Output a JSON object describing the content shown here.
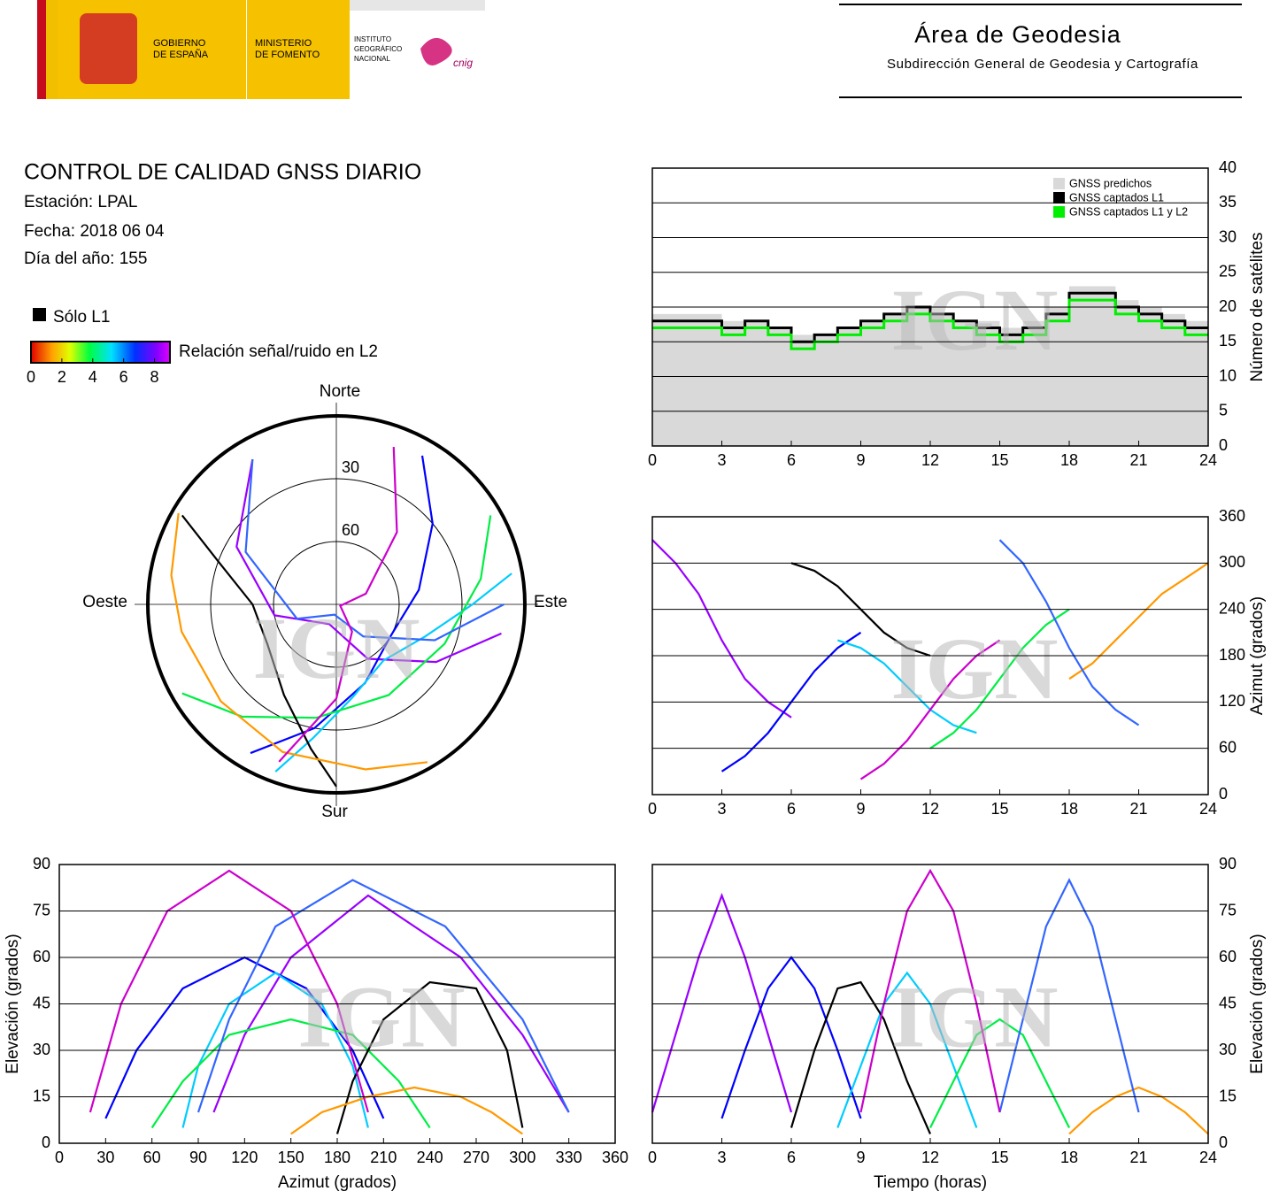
{
  "header": {
    "gobierno": [
      "GOBIERNO",
      "DE ESPAÑA"
    ],
    "ministerio": [
      "MINISTERIO",
      "DE FOMENTO"
    ],
    "instituto": [
      "INSTITUTO",
      "GEOGRÁFICO",
      "NACIONAL"
    ],
    "cnig": "cnig",
    "area": "Área de Geodesia",
    "subdireccion": "Subdirección General de Geodesia y Cartografía"
  },
  "report": {
    "title": "CONTROL DE CALIDAD GNSS DIARIO",
    "estacion": "Estación: LPAL",
    "fecha": "Fecha: 2018 06 04",
    "dia": "Día del año: 155"
  },
  "legend": {
    "solo_l1": "Sólo L1",
    "solo_l1_color": "#000000",
    "snr_label": "Relación señal/ruido en L2",
    "snr_lim": [
      0,
      9
    ],
    "snr_ticks": [
      0,
      2,
      4,
      6,
      8
    ]
  },
  "watermark": "IGN",
  "chart_data": [
    {
      "type": "step",
      "y_label": "Número de satélites",
      "yaxis": "right",
      "grid": true,
      "legend": "upper right",
      "xlim": [
        0,
        24
      ],
      "xticks": [
        0,
        3,
        6,
        9,
        12,
        15,
        18,
        21,
        24
      ],
      "ylim": [
        0,
        40
      ],
      "yticks": [
        0,
        5,
        10,
        15,
        20,
        25,
        30,
        35,
        40
      ],
      "x": [
        0,
        1,
        2,
        3,
        4,
        5,
        6,
        7,
        8,
        9,
        10,
        11,
        12,
        13,
        14,
        15,
        16,
        17,
        18,
        19,
        20,
        21,
        22,
        23,
        24
      ],
      "series": [
        {
          "name": "GNSS predichos",
          "color": "#d9d9d9",
          "kind": "area",
          "values": [
            19,
            19,
            19,
            18,
            18,
            17,
            16,
            16,
            17,
            18,
            19,
            20,
            19,
            18,
            18,
            17,
            18,
            20,
            23,
            23,
            21,
            20,
            19,
            18,
            18
          ]
        },
        {
          "name": "GNSS captados L1",
          "color": "#000000",
          "kind": "step",
          "values": [
            18,
            18,
            18,
            17,
            18,
            17,
            15,
            16,
            17,
            18,
            19,
            20,
            19,
            18,
            17,
            16,
            17,
            19,
            22,
            22,
            20,
            19,
            18,
            17,
            17
          ]
        },
        {
          "name": "GNSS captados L1 y L2",
          "color": "#00ee00",
          "kind": "step",
          "values": [
            17,
            17,
            17,
            16,
            17,
            16,
            14,
            15,
            16,
            17,
            18,
            19,
            18,
            17,
            16,
            15,
            16,
            18,
            21,
            21,
            19,
            18,
            17,
            16,
            16
          ]
        }
      ]
    },
    {
      "type": "line",
      "y_label": "Azimut (grados)",
      "yaxis": "right",
      "grid": true,
      "xlim": [
        0,
        24
      ],
      "xticks": [
        0,
        3,
        6,
        9,
        12,
        15,
        18,
        21,
        24
      ],
      "ylim": [
        0,
        360
      ],
      "yticks": [
        0,
        60,
        120,
        180,
        240,
        300,
        360
      ],
      "series": [
        {
          "color": "#9900ff",
          "x": [
            0,
            1,
            2,
            3,
            4,
            5,
            6
          ],
          "values": [
            330,
            300,
            260,
            200,
            150,
            120,
            100
          ]
        },
        {
          "color": "#0000ff",
          "x": [
            3,
            4,
            5,
            6,
            7,
            8,
            9
          ],
          "values": [
            30,
            50,
            80,
            120,
            160,
            190,
            210
          ]
        },
        {
          "color": "#00ccff",
          "x": [
            8,
            9,
            10,
            11,
            12,
            13,
            14
          ],
          "values": [
            200,
            190,
            170,
            140,
            110,
            90,
            80
          ]
        },
        {
          "color": "#00ee44",
          "x": [
            12,
            13,
            14,
            15,
            16,
            17,
            18
          ],
          "values": [
            60,
            80,
            110,
            150,
            190,
            220,
            240
          ]
        },
        {
          "color": "#000000",
          "x": [
            6,
            7,
            8,
            9,
            10,
            11,
            12
          ],
          "values": [
            300,
            290,
            270,
            240,
            210,
            190,
            180
          ]
        },
        {
          "color": "#ff9900",
          "x": [
            18,
            19,
            20,
            21,
            22,
            23,
            24
          ],
          "values": [
            150,
            170,
            200,
            230,
            260,
            280,
            300
          ]
        },
        {
          "color": "#3366ff",
          "x": [
            15,
            16,
            17,
            18,
            19,
            20,
            21
          ],
          "values": [
            330,
            300,
            250,
            190,
            140,
            110,
            90
          ]
        },
        {
          "color": "#cc00cc",
          "x": [
            9,
            10,
            11,
            12,
            13,
            14,
            15
          ],
          "values": [
            20,
            40,
            70,
            110,
            150,
            180,
            200
          ]
        }
      ]
    },
    {
      "type": "polar",
      "directions": {
        "north": "Norte",
        "east": "Este",
        "south": "Sur",
        "west": "Oeste"
      },
      "rlim": [
        90,
        0
      ],
      "rticks": [
        30,
        60
      ],
      "series": [
        {
          "color": "#9900ff",
          "azimuth": [
            330,
            300,
            260,
            200,
            150,
            120,
            100
          ],
          "elevation": [
            10,
            35,
            60,
            80,
            60,
            35,
            10
          ]
        },
        {
          "color": "#0000ff",
          "azimuth": [
            30,
            50,
            80,
            120,
            160,
            190,
            210
          ],
          "elevation": [
            8,
            30,
            50,
            60,
            50,
            30,
            8
          ]
        },
        {
          "color": "#00ccff",
          "azimuth": [
            200,
            190,
            170,
            140,
            110,
            90,
            80
          ],
          "elevation": [
            5,
            25,
            45,
            55,
            45,
            25,
            5
          ]
        },
        {
          "color": "#00ee44",
          "azimuth": [
            60,
            80,
            110,
            150,
            190,
            220,
            240
          ],
          "elevation": [
            5,
            20,
            35,
            40,
            35,
            20,
            5
          ]
        },
        {
          "color": "#000000",
          "azimuth": [
            300,
            290,
            270,
            240,
            210,
            190,
            180
          ],
          "elevation": [
            5,
            30,
            50,
            52,
            40,
            20,
            3
          ]
        },
        {
          "color": "#ff9900",
          "azimuth": [
            150,
            170,
            200,
            230,
            260,
            280,
            300
          ],
          "elevation": [
            3,
            10,
            15,
            18,
            15,
            10,
            3
          ]
        },
        {
          "color": "#3366ff",
          "azimuth": [
            330,
            300,
            250,
            190,
            140,
            110,
            90
          ],
          "elevation": [
            10,
            40,
            70,
            85,
            70,
            40,
            10
          ]
        },
        {
          "color": "#cc00cc",
          "azimuth": [
            20,
            40,
            70,
            110,
            150,
            180,
            200
          ],
          "elevation": [
            10,
            45,
            75,
            88,
            75,
            45,
            10
          ]
        }
      ]
    },
    {
      "type": "line",
      "x_label": "Azimut (grados)",
      "y_label": "Elevación (grados)",
      "yaxis": "left",
      "grid": true,
      "xlim": [
        0,
        360
      ],
      "xticks": [
        0,
        30,
        60,
        90,
        120,
        150,
        180,
        210,
        240,
        270,
        300,
        330,
        360
      ],
      "ylim": [
        0,
        90
      ],
      "yticks": [
        0,
        15,
        30,
        45,
        60,
        75,
        90
      ],
      "series": [
        {
          "color": "#9900ff",
          "x": [
            330,
            300,
            260,
            200,
            150,
            120,
            100
          ],
          "values": [
            10,
            35,
            60,
            80,
            60,
            35,
            10
          ]
        },
        {
          "color": "#0000ff",
          "x": [
            30,
            50,
            80,
            120,
            160,
            190,
            210
          ],
          "values": [
            8,
            30,
            50,
            60,
            50,
            30,
            8
          ]
        },
        {
          "color": "#00ccff",
          "x": [
            200,
            190,
            170,
            140,
            110,
            90,
            80
          ],
          "values": [
            5,
            25,
            45,
            55,
            45,
            25,
            5
          ]
        },
        {
          "color": "#00ee44",
          "x": [
            60,
            80,
            110,
            150,
            190,
            220,
            240
          ],
          "values": [
            5,
            20,
            35,
            40,
            35,
            20,
            5
          ]
        },
        {
          "color": "#000000",
          "x": [
            300,
            290,
            270,
            240,
            210,
            190,
            180
          ],
          "values": [
            5,
            30,
            50,
            52,
            40,
            20,
            3
          ]
        },
        {
          "color": "#ff9900",
          "x": [
            150,
            170,
            200,
            230,
            260,
            280,
            300
          ],
          "values": [
            3,
            10,
            15,
            18,
            15,
            10,
            3
          ]
        },
        {
          "color": "#3366ff",
          "x": [
            330,
            300,
            250,
            190,
            140,
            110,
            90
          ],
          "values": [
            10,
            40,
            70,
            85,
            70,
            40,
            10
          ]
        },
        {
          "color": "#cc00cc",
          "x": [
            20,
            40,
            70,
            110,
            150,
            180,
            200
          ],
          "values": [
            10,
            45,
            75,
            88,
            75,
            45,
            10
          ]
        }
      ]
    },
    {
      "type": "line",
      "x_label": "Tiempo (horas)",
      "y_label": "Elevación (grados)",
      "yaxis": "right",
      "grid": true,
      "xlim": [
        0,
        24
      ],
      "xticks": [
        0,
        3,
        6,
        9,
        12,
        15,
        18,
        21,
        24
      ],
      "ylim": [
        0,
        90
      ],
      "yticks": [
        0,
        15,
        30,
        45,
        60,
        75,
        90
      ],
      "series": [
        {
          "color": "#9900ff",
          "x": [
            0,
            1,
            2,
            3,
            4,
            5,
            6
          ],
          "values": [
            10,
            35,
            60,
            80,
            60,
            35,
            10
          ]
        },
        {
          "color": "#0000ff",
          "x": [
            3,
            4,
            5,
            6,
            7,
            8,
            9
          ],
          "values": [
            8,
            30,
            50,
            60,
            50,
            30,
            8
          ]
        },
        {
          "color": "#00ccff",
          "x": [
            8,
            9,
            10,
            11,
            12,
            13,
            14
          ],
          "values": [
            5,
            25,
            45,
            55,
            45,
            25,
            5
          ]
        },
        {
          "color": "#00ee44",
          "x": [
            12,
            13,
            14,
            15,
            16,
            17,
            18
          ],
          "values": [
            5,
            20,
            35,
            40,
            35,
            20,
            5
          ]
        },
        {
          "color": "#000000",
          "x": [
            6,
            7,
            8,
            9,
            10,
            11,
            12
          ],
          "values": [
            5,
            30,
            50,
            52,
            40,
            20,
            3
          ]
        },
        {
          "color": "#ff9900",
          "x": [
            18,
            19,
            20,
            21,
            22,
            23,
            24
          ],
          "values": [
            3,
            10,
            15,
            18,
            15,
            10,
            3
          ]
        },
        {
          "color": "#3366ff",
          "x": [
            15,
            16,
            17,
            18,
            19,
            20,
            21
          ],
          "values": [
            10,
            40,
            70,
            85,
            70,
            40,
            10
          ]
        },
        {
          "color": "#cc00cc",
          "x": [
            9,
            10,
            11,
            12,
            13,
            14,
            15
          ],
          "values": [
            10,
            45,
            75,
            88,
            75,
            45,
            10
          ]
        }
      ]
    }
  ]
}
